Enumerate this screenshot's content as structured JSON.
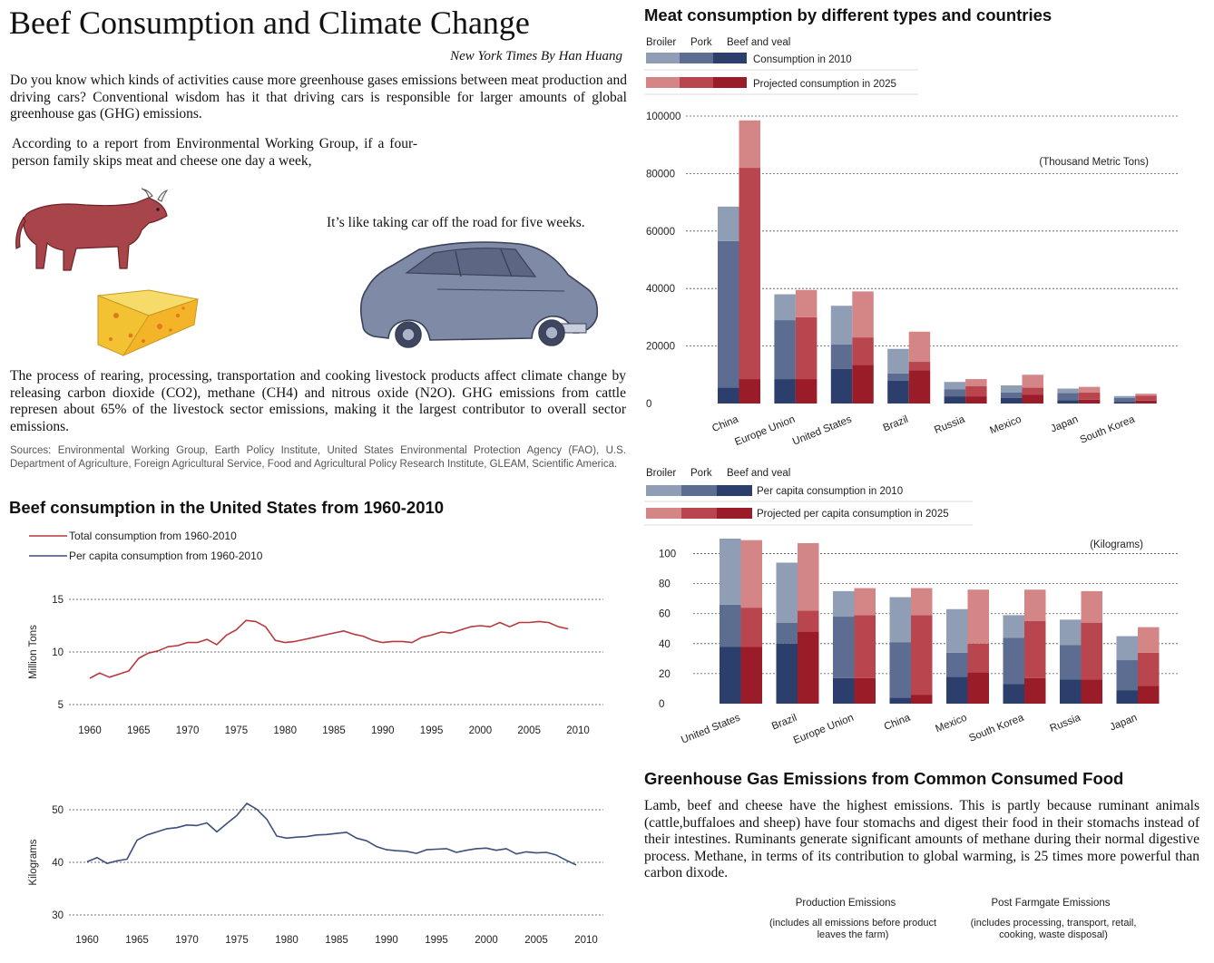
{
  "header": {
    "title": "Beef Consumption and Climate Change",
    "byline": "New York Times   By Han Huang"
  },
  "article": {
    "intro": "Do you know which kinds of activities cause more greenhouse gases emissions between meat production and driving cars? Conventional wisdom has it that driving cars is responsible for larger amounts of global greenhouse gas (GHG) emissions.",
    "report": "According to a report from Environmental Working Group, if a four-person family skips meat and cheese one day a week,",
    "quote": "It’s like taking car off the road for five weeks.",
    "process": "The process of rearing, processing, transportation and cooking livestock products affect climate change by releasing carbon dioxide (CO2), methane (CH4) and nitrous oxide (N2O). GHG emissions from cattle represen about 65% of the livestock sector emissions, making it the largest contributor to overall sector emissions.",
    "sources": "Sources: Environmental Working Group, Earth Policy Institute, United States Environmental Protection Agency (FAO), U.S. Department of Agriculture, Foreign Agricultural Service, Food and Agricultural Policy Research Institute, GLEAM, Scientific America."
  },
  "illustrations": {
    "cow": "cow-illustration",
    "cheese": "cheese-illustration",
    "car": "car-illustration"
  },
  "ghg": {
    "title": "Greenhouse Gas Emissions from Common Consumed Food",
    "text": "Lamb, beef and cheese have the highest emissions. This is partly because ruminant animals (cattle,buffaloes and sheep) have four stomachs and digest their food in their stomachs instead of their intestines. Ruminants generate significant amounts of methane during their normal digestive process. Methane, in terms of its contribution to global warming, is 25 times more powerful than carbon dixode.",
    "col1_title": "Production Emissions",
    "col1_sub": "(includes all emissions before product leaves the farm)",
    "col2_title": "Post Farmgate Emissions",
    "col2_sub": "(includes processing, transport, retail, cooking, waste disposal)"
  },
  "colors": {
    "broiler_2010": "#8f9db5",
    "pork_2010": "#5d6d92",
    "beef_2010": "#2c3e6b",
    "broiler_2025": "#d48585",
    "pork_2025": "#b9454f",
    "beef_2025": "#9b1c29",
    "total_line": "#b8383f",
    "percap_line": "#3d4f7c"
  },
  "chart_data": [
    {
      "id": "meat_total",
      "type": "bar",
      "title": "Meat consumption by different types and countries",
      "unit_label": "(Thousand Metric Tons)",
      "legend_types": [
        "Broiler",
        "Pork",
        "Beef and veal"
      ],
      "legend_2010": "Consumption in 2010",
      "legend_2025": "Projected consumption in 2025",
      "ylim": [
        0,
        100000
      ],
      "yticks": [
        0,
        20000,
        40000,
        60000,
        80000,
        100000
      ],
      "categories": [
        "China",
        "Europe Union",
        "United States",
        "Brazil",
        "Russia",
        "Mexico",
        "Japan",
        "South Korea"
      ],
      "series": [
        {
          "name": "Broiler",
          "year": "2010",
          "values": [
            12000,
            9000,
            13500,
            8500,
            2500,
            2500,
            1500,
            700
          ]
        },
        {
          "name": "Pork",
          "year": "2010",
          "values": [
            51000,
            20500,
            8500,
            2500,
            2500,
            1800,
            2500,
            1300
          ]
        },
        {
          "name": "Beef and veal",
          "year": "2010",
          "values": [
            5500,
            8500,
            12000,
            8000,
            2500,
            2000,
            1200,
            600
          ]
        },
        {
          "name": "Broiler",
          "year": "2025",
          "values": [
            16500,
            9500,
            16000,
            10500,
            2500,
            4500,
            2000,
            700
          ]
        },
        {
          "name": "Pork",
          "year": "2025",
          "values": [
            73500,
            21500,
            9500,
            3000,
            3500,
            2500,
            2500,
            1700
          ]
        },
        {
          "name": "Beef and veal",
          "year": "2025",
          "values": [
            8500,
            8500,
            13500,
            11500,
            2500,
            3000,
            1300,
            1000
          ]
        }
      ]
    },
    {
      "id": "meat_per_capita",
      "type": "bar",
      "unit_label": "(Kilograms)",
      "legend_types": [
        "Broiler",
        "Pork",
        "Beef and veal"
      ],
      "legend_2010": "Per capita consumption in 2010",
      "legend_2025": "Projected per capita consumption in 2025",
      "ylim": [
        0,
        110
      ],
      "yticks": [
        0,
        20,
        40,
        60,
        80,
        100
      ],
      "categories": [
        "United States",
        "Brazil",
        "Europe Union",
        "China",
        "Mexico",
        "South Korea",
        "Russia",
        "Japan"
      ],
      "series": [
        {
          "name": "Broiler",
          "year": "2010",
          "values": [
            44,
            40,
            17,
            30,
            29,
            15,
            17,
            16
          ]
        },
        {
          "name": "Pork",
          "year": "2010",
          "values": [
            28,
            14,
            41,
            37,
            16,
            31,
            23,
            20
          ]
        },
        {
          "name": "Beef and veal",
          "year": "2010",
          "values": [
            38,
            40,
            17,
            4,
            18,
            13,
            16,
            9
          ]
        },
        {
          "name": "Broiler",
          "year": "2025",
          "values": [
            45,
            45,
            18,
            18,
            36,
            21,
            21,
            17
          ]
        },
        {
          "name": "Pork",
          "year": "2025",
          "values": [
            26,
            14,
            42,
            53,
            19,
            38,
            38,
            22
          ]
        },
        {
          "name": "Beef and veal",
          "year": "2025",
          "values": [
            38,
            48,
            17,
            6,
            21,
            17,
            16,
            12
          ]
        }
      ]
    },
    {
      "id": "beef_total",
      "type": "line",
      "title": "Beef consumption in the United States from 1960-2010",
      "ylabel": "Million Tons",
      "legend": [
        "Total  consumption from 1960-2010",
        "Per capita  consumption from 1960-2010"
      ],
      "xlim": [
        1960,
        2010
      ],
      "xticks": [
        1960,
        1965,
        1970,
        1975,
        1980,
        1985,
        1990,
        1995,
        2000,
        2005,
        2010
      ],
      "ylim": [
        5,
        15
      ],
      "yticks": [
        5,
        10,
        15
      ],
      "x": [
        1960,
        1961,
        1962,
        1963,
        1964,
        1965,
        1966,
        1967,
        1968,
        1969,
        1970,
        1971,
        1972,
        1973,
        1974,
        1975,
        1976,
        1977,
        1978,
        1979,
        1980,
        1981,
        1982,
        1983,
        1984,
        1985,
        1986,
        1987,
        1988,
        1989,
        1990,
        1991,
        1992,
        1993,
        1994,
        1995,
        1996,
        1997,
        1998,
        1999,
        2000,
        2001,
        2002,
        2003,
        2004,
        2005,
        2006,
        2007,
        2008,
        2009
      ],
      "values": [
        7.5,
        8.0,
        7.6,
        7.9,
        8.2,
        9.4,
        9.9,
        10.1,
        10.5,
        10.6,
        10.9,
        10.9,
        11.2,
        10.7,
        11.6,
        12.1,
        13.0,
        12.9,
        12.4,
        11.1,
        10.9,
        11.0,
        11.2,
        11.4,
        11.6,
        11.8,
        12.0,
        11.7,
        11.5,
        11.1,
        10.9,
        11.0,
        11.0,
        10.9,
        11.4,
        11.6,
        11.9,
        11.8,
        12.1,
        12.4,
        12.5,
        12.4,
        12.8,
        12.4,
        12.8,
        12.8,
        12.9,
        12.8,
        12.4,
        12.2
      ]
    },
    {
      "id": "beef_per_capita",
      "type": "line",
      "ylabel": "Kilograms",
      "xlim": [
        1960,
        2010
      ],
      "xticks": [
        1960,
        1965,
        1970,
        1975,
        1980,
        1985,
        1990,
        1995,
        2000,
        2005,
        2010
      ],
      "ylim": [
        30,
        50
      ],
      "yticks": [
        30,
        40,
        50
      ],
      "x": [
        1960,
        1961,
        1962,
        1963,
        1964,
        1965,
        1966,
        1967,
        1968,
        1969,
        1970,
        1971,
        1972,
        1973,
        1974,
        1975,
        1976,
        1977,
        1978,
        1979,
        1980,
        1981,
        1982,
        1983,
        1984,
        1985,
        1986,
        1987,
        1988,
        1989,
        1990,
        1991,
        1992,
        1993,
        1994,
        1995,
        1996,
        1997,
        1998,
        1999,
        2000,
        2001,
        2002,
        2003,
        2004,
        2005,
        2006,
        2007,
        2008,
        2009
      ],
      "values": [
        40.1,
        40.9,
        39.8,
        40.3,
        40.6,
        44.2,
        45.2,
        45.8,
        46.4,
        46.6,
        47.1,
        47.0,
        47.5,
        45.8,
        47.4,
        48.9,
        51.2,
        50.1,
        48.2,
        45.0,
        44.6,
        44.8,
        44.9,
        45.2,
        45.3,
        45.5,
        45.7,
        44.6,
        44.1,
        43.0,
        42.4,
        42.2,
        42.1,
        41.7,
        42.4,
        42.5,
        42.6,
        41.9,
        42.3,
        42.6,
        42.7,
        42.3,
        42.6,
        41.6,
        42.0,
        41.8,
        41.9,
        41.4,
        40.4,
        39.5
      ]
    }
  ]
}
